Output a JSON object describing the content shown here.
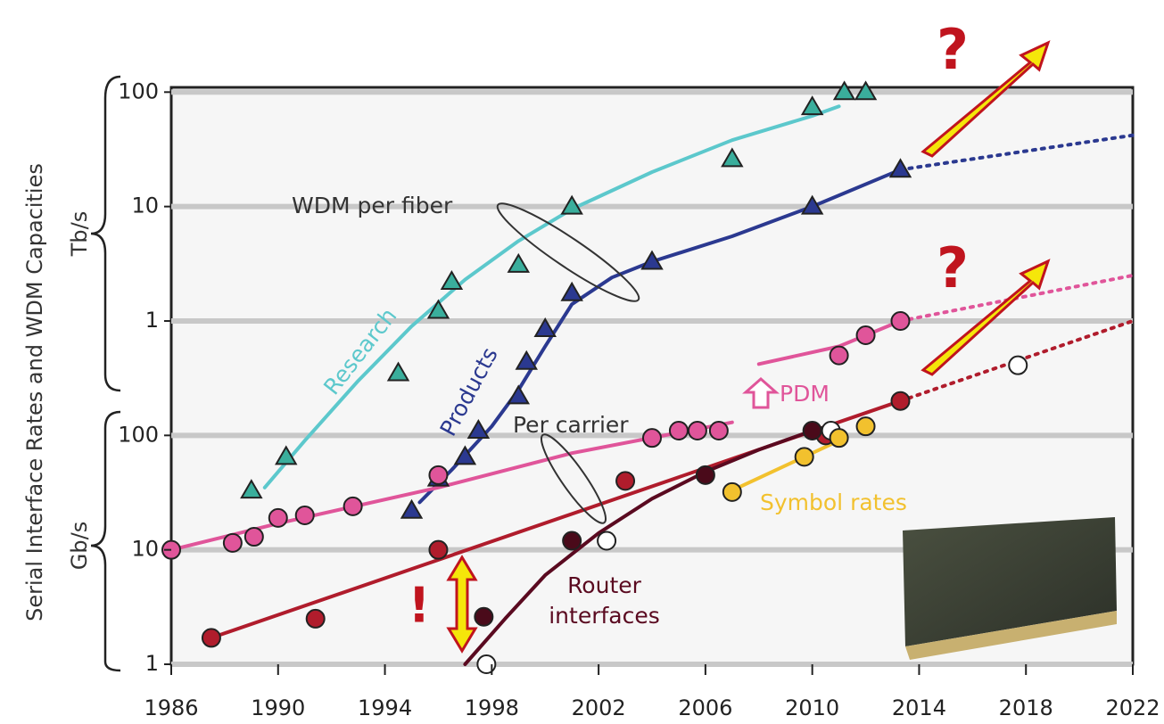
{
  "chart_data": {
    "type": "line",
    "y_title": "Serial Interface Rates and WDM Capacities",
    "y_unit_upper": "Tb/s",
    "y_unit_lower": "Gb/s",
    "log_y": true,
    "grid": true,
    "xlim": [
      1986,
      2022
    ],
    "xticks": [
      1986,
      1990,
      1994,
      1998,
      2002,
      2006,
      2010,
      2014,
      2018,
      2022
    ],
    "ylim": [
      1,
      110000
    ],
    "yticks": [
      1,
      10,
      100,
      {
        "value": 1000,
        "label": "1"
      },
      {
        "value": 10000,
        "label": "10"
      },
      {
        "value": 100000,
        "label": "100"
      }
    ],
    "series": [
      {
        "name": "Research",
        "color": "#5cc8cc",
        "marker": "triangle",
        "marker_color": "#3aae9c",
        "x": [
          1989,
          1990.3,
          1994.5,
          1996,
          1996.5,
          1999,
          2001,
          2007,
          2010,
          2011.2,
          2012
        ],
        "values": [
          33,
          65,
          350,
          1230,
          2200,
          3100,
          10000,
          26000,
          74000,
          100000,
          100000
        ],
        "fit": {
          "x": [
            1989.5,
            1991,
            1993,
            1995,
            1997,
            1999,
            2001,
            2004,
            2007,
            2010,
            2011
          ],
          "values": [
            35,
            90,
            300,
            900,
            2300,
            5000,
            9500,
            20000,
            38000,
            62000,
            75000
          ]
        }
      },
      {
        "name": "Products",
        "color": "#2b3990",
        "marker": "triangle",
        "marker_color": "#2b3990",
        "x": [
          1995,
          1996,
          1997,
          1997.5,
          1999,
          1999.3,
          2000,
          2001,
          2004,
          2010,
          2013.3
        ],
        "values": [
          22,
          42,
          65,
          110,
          220,
          440,
          850,
          1750,
          3300,
          10000,
          21000
        ],
        "fit": {
          "x": [
            1995.3,
            1996.5,
            1998,
            1999,
            2000,
            2001,
            2002.5,
            2004,
            2007,
            2010,
            2013.3
          ],
          "values": [
            26,
            50,
            120,
            250,
            600,
            1400,
            2400,
            3300,
            5500,
            10000,
            21000
          ]
        },
        "trend": {
          "x": [
            2013.3,
            2022
          ],
          "values": [
            21000,
            42000
          ]
        }
      },
      {
        "name": "Per carrier",
        "color": "#e0559a",
        "marker": "circle",
        "marker_color": "#e0559a",
        "x": [
          1986,
          1988.3,
          1989.1,
          1990,
          1991,
          1992.8,
          1996,
          2004,
          2005,
          2005.7,
          2006.5,
          2011,
          2012,
          2013.3
        ],
        "values": [
          10,
          11.5,
          13,
          19,
          20,
          24,
          45,
          95,
          110,
          110,
          110,
          500,
          750,
          1000
        ],
        "fit": {
          "x": [
            1986,
            1990,
            1996,
            2001,
            2007,
            2007.5,
            2008,
            2011,
            2013.3
          ],
          "values": [
            10,
            17,
            35,
            70,
            130,
            null,
            420,
            600,
            1000
          ]
        },
        "trend": {
          "x": [
            2013.3,
            2022
          ],
          "values": [
            1000,
            2500
          ]
        }
      },
      {
        "color": "#b01c2c",
        "marker": "circle",
        "marker_color": "#b01c2c",
        "x": [
          1987.5,
          1991.4,
          1996,
          2003,
          2010.5,
          2013.3
        ],
        "values": [
          1.7,
          2.5,
          10,
          40,
          100,
          200
        ],
        "fit": {
          "x": [
            1987.5,
            2013.3
          ],
          "values": [
            1.7,
            200
          ]
        },
        "trend": {
          "x": [
            2013.3,
            2022
          ],
          "values": [
            200,
            1000
          ]
        }
      },
      {
        "name": "Router interfaces",
        "color": "#5a0a20",
        "marker": "circle",
        "marker_color": "#4a0a1a",
        "x": [
          1997.7,
          2001,
          2006,
          2010
        ],
        "values": [
          2.6,
          12,
          45,
          110
        ],
        "fit": {
          "x": [
            1997,
            1998.5,
            2000,
            2002,
            2004,
            2006,
            2008,
            2010
          ],
          "values": [
            1,
            2.5,
            6,
            14,
            28,
            48,
            75,
            110
          ]
        }
      },
      {
        "color": "#555555",
        "marker": "circle",
        "marker_color": "#ffffff",
        "x": [
          1997.8,
          2002.3,
          2010.7,
          2017.7
        ],
        "values": [
          1,
          12,
          110,
          410
        ]
      },
      {
        "name": "Symbol rates",
        "color": "#f2c12e",
        "marker": "circle",
        "marker_color": "#f2c12e",
        "x": [
          2007,
          2009.7,
          2011,
          2012
        ],
        "values": [
          32,
          65,
          95,
          120
        ],
        "fit": {
          "x": [
            2007,
            2011
          ],
          "values": [
            33,
            90
          ]
        }
      }
    ],
    "annotations": {
      "wdm": "WDM per fiber",
      "pdm": "PDM",
      "question": "?",
      "exclaim": "!"
    }
  }
}
